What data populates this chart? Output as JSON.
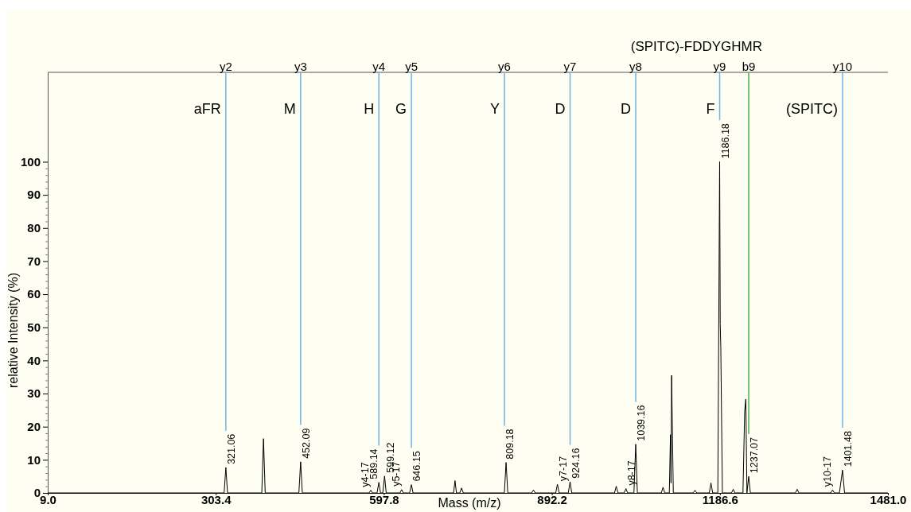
{
  "chart_data": {
    "type": "line",
    "title": "(SPITC)-FDDYGHMR",
    "xlabel": "Mass (m/z)",
    "ylabel": "relative Intensity (%)",
    "x": [
      9,
      318,
      321.06,
      324,
      384,
      387,
      390,
      449,
      452.09,
      455,
      572,
      575,
      578,
      586,
      589.14,
      592,
      596,
      599.12,
      602,
      626,
      629,
      632,
      643,
      646.15,
      649,
      720,
      722.6,
      725,
      731,
      734,
      737,
      809,
      812,
      815,
      857,
      860,
      863,
      899,
      902,
      905,
      921,
      924.16,
      927,
      1002,
      1005,
      1008,
      1019,
      1022,
      1025,
      1036,
      1039.16,
      1042,
      1084,
      1087,
      1090,
      1098,
      1100,
      1101,
      1102,
      1105,
      1140,
      1143,
      1146,
      1168,
      1171,
      1174,
      1183,
      1186.18,
      1187.2,
      1188.2,
      1191,
      1207,
      1210,
      1213,
      1227,
      1230,
      1232,
      1234,
      1237.07,
      1240,
      1319,
      1322,
      1325,
      1381,
      1384,
      1387,
      1396,
      1401.48,
      1405,
      1481
    ],
    "series": [
      {
        "color": "#000000",
        "values": [
          0,
          0,
          7.7,
          0,
          0,
          16.4,
          0,
          0,
          9.4,
          0,
          0,
          0.8,
          0,
          0,
          3.2,
          0,
          0,
          5.1,
          0,
          0,
          1.0,
          0,
          0,
          2.5,
          0,
          0,
          3.7,
          0,
          0,
          1.5,
          0,
          0,
          9.2,
          0,
          0,
          0.9,
          0,
          0,
          2.6,
          0,
          0,
          3.4,
          0,
          0,
          2.0,
          0,
          0,
          1.3,
          0,
          0,
          14.7,
          0,
          0,
          1.7,
          0,
          0,
          17.6,
          3,
          35.5,
          0,
          0,
          0.8,
          0,
          0,
          3.0,
          0,
          0,
          100,
          51,
          44,
          0,
          0,
          1.1,
          0,
          0,
          24.6,
          28.3,
          0,
          5.0,
          0,
          0,
          1.1,
          0,
          0,
          0.9,
          0,
          0,
          6.9,
          0,
          0
        ],
        "line_style": "solid"
      }
    ],
    "xlim": [
      9,
      1481
    ],
    "ylim": [
      0,
      127
    ],
    "xticks": [
      {
        "value": 9,
        "label": "9.0"
      },
      303.4,
      597.8,
      892.2,
      1186.6,
      {
        "value": 1481,
        "label": "1481.0"
      }
    ],
    "yticks": [
      0,
      {
        "value": 2,
        "label": null
      },
      {
        "value": 4,
        "label": null
      },
      {
        "value": 6,
        "label": null
      },
      {
        "value": 8,
        "label": null
      },
      10,
      {
        "value": 12,
        "label": null
      },
      {
        "value": 14,
        "label": null
      },
      {
        "value": 16,
        "label": null
      },
      {
        "value": 18,
        "label": null
      },
      20,
      {
        "value": 22,
        "label": null
      },
      {
        "value": 24,
        "label": null
      },
      {
        "value": 26,
        "label": null
      },
      {
        "value": 28,
        "label": null
      },
      30,
      {
        "value": 32,
        "label": null
      },
      {
        "value": 34,
        "label": null
      },
      {
        "value": 36,
        "label": null
      },
      {
        "value": 38,
        "label": null
      },
      40,
      {
        "value": 42,
        "label": null
      },
      {
        "value": 44,
        "label": null
      },
      {
        "value": 46,
        "label": null
      },
      {
        "value": 48,
        "label": null
      },
      50,
      {
        "value": 52,
        "label": null
      },
      {
        "value": 54,
        "label": null
      },
      {
        "value": 56,
        "label": null
      },
      {
        "value": 58,
        "label": null
      },
      60,
      {
        "value": 62,
        "label": null
      },
      {
        "value": 64,
        "label": null
      },
      {
        "value": 66,
        "label": null
      },
      {
        "value": 68,
        "label": null
      },
      70,
      {
        "value": 72,
        "label": null
      },
      {
        "value": 74,
        "label": null
      },
      {
        "value": 76,
        "label": null
      },
      {
        "value": 78,
        "label": null
      },
      80,
      {
        "value": 82,
        "label": null
      },
      {
        "value": 84,
        "label": null
      },
      {
        "value": 86,
        "label": null
      },
      {
        "value": 88,
        "label": null
      },
      90,
      {
        "value": 92,
        "label": null
      },
      {
        "value": 94,
        "label": null
      },
      {
        "value": 96,
        "label": null
      },
      {
        "value": 98,
        "label": null
      },
      100
    ],
    "ref_lines": [
      {
        "axis": "x",
        "value": 321.06,
        "label": "y2",
        "color": "#6fb2e2"
      },
      {
        "axis": "x",
        "value": 452.09,
        "label": "y3",
        "color": "#6fb2e2"
      },
      {
        "axis": "x",
        "value": 589.14,
        "label": "y4",
        "color": "#6fb2e2"
      },
      {
        "axis": "x",
        "value": 646.15,
        "label": "y5",
        "color": "#6fb2e2"
      },
      {
        "axis": "x",
        "value": 809.18,
        "label": "y6",
        "color": "#6fb2e2"
      },
      {
        "axis": "x",
        "value": 924.16,
        "label": "y7",
        "color": "#6fb2e2"
      },
      {
        "axis": "x",
        "value": 1039.16,
        "label": "y8",
        "color": "#6fb2e2"
      },
      {
        "axis": "x",
        "value": 1186.18,
        "label": "y9",
        "color": "#6fb2e2"
      },
      {
        "axis": "x",
        "value": 1237.07,
        "label": "b9",
        "color": "#4caf50"
      },
      {
        "axis": "x",
        "value": 1401.48,
        "label": "y10",
        "color": "#6fb2e2"
      }
    ],
    "annotations": [
      "aFR",
      "M",
      "H",
      "G",
      "Y",
      "D",
      "D",
      "F",
      "(SPITC)",
      {
        "text": "321.06",
        "x": 321.06,
        "y": 7.7
      },
      {
        "text": "452.09",
        "x": 452.09,
        "y": 9.4
      },
      {
        "text": "y4-17",
        "x": 575,
        "y": 0.8
      },
      {
        "text": "589.14",
        "x": 589.14,
        "y": 3.2
      },
      {
        "text": "599.12",
        "x": 599.12,
        "y": 5.1
      },
      {
        "text": "y5-17",
        "x": 629,
        "y": 1.0
      },
      {
        "text": "646.15",
        "x": 646.15,
        "y": 2.5
      },
      {
        "text": "809.18",
        "x": 809.18,
        "y": 9.2
      },
      {
        "text": "y7-17",
        "x": 902,
        "y": 2.6
      },
      {
        "text": "924.16",
        "x": 924.16,
        "y": 3.4
      },
      {
        "text": "y8-17",
        "x": 1022,
        "y": 1.3
      },
      {
        "text": "1039.16",
        "x": 1039.16,
        "y": 14.7
      },
      {
        "text": "1186.18",
        "x": 1186.18,
        "y": 100
      },
      {
        "text": "1237.07",
        "x": 1237.07,
        "y": 5.0
      },
      {
        "text": "y10-17",
        "x": 1384,
        "y": 0.9
      },
      {
        "text": "1401.48",
        "x": 1401.48,
        "y": 6.9
      }
    ],
    "grid": false
  }
}
